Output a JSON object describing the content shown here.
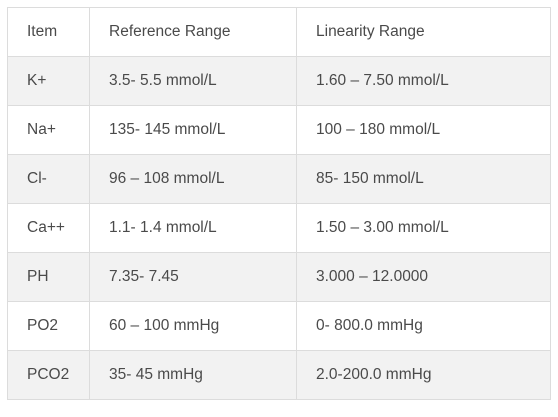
{
  "table": {
    "headers": [
      "Item",
      "Reference Range",
      "Linearity Range"
    ],
    "rows": [
      [
        "K+",
        "3.5- 5.5 mmol/L",
        "1.60 – 7.50 mmol/L"
      ],
      [
        "Na+",
        "135- 145 mmol/L",
        "100 – 180 mmol/L"
      ],
      [
        "Cl-",
        "96 – 108 mmol/L",
        "85- 150 mmol/L"
      ],
      [
        "Ca++",
        "1.1- 1.4 mmol/L",
        "1.50 – 3.00 mmol/L"
      ],
      [
        "PH",
        "7.35- 7.45",
        "3.000 – 12.0000"
      ],
      [
        "PO2",
        "60 – 100 mmHg",
        "0- 800.0 mmHg"
      ],
      [
        "PCO2",
        "35- 45 mmHg",
        "2.0-200.0 mmHg"
      ]
    ]
  },
  "colors": {
    "text": "#4a4a4a",
    "border": "#dcdcdc",
    "row_even_bg": "#f2f2f2",
    "row_odd_bg": "#ffffff"
  }
}
